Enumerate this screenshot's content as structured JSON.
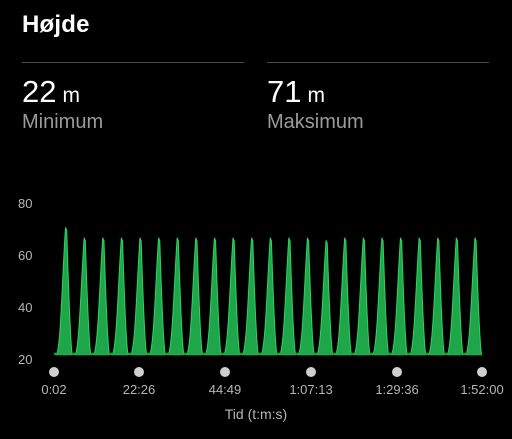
{
  "header": {
    "title": "Højde"
  },
  "stats": {
    "minimum": {
      "value": "22",
      "unit": "m",
      "label": "Minimum"
    },
    "maximum": {
      "value": "71",
      "unit": "m",
      "label": "Maksimum"
    }
  },
  "colors": {
    "fill": "#1fa64a",
    "line": "#2fd261",
    "background": "#000000",
    "marker": "#cfcfcf"
  },
  "chart_data": {
    "type": "area",
    "title": "",
    "xlabel": "Tid (t:m:s)",
    "ylabel": "",
    "ylim": [
      20,
      80
    ],
    "y_ticks": [
      "20",
      "40",
      "60",
      "80"
    ],
    "x_ticks": [
      "0:02",
      "22:26",
      "44:49",
      "1:07:13",
      "1:29:36",
      "1:52:00"
    ],
    "x_range_seconds": [
      2,
      6720
    ],
    "baseline_m": 22,
    "peaks_m": [
      71,
      67,
      67,
      67,
      67,
      67,
      67,
      67,
      67,
      67,
      67,
      67,
      67,
      67,
      66,
      67,
      67,
      67,
      67,
      67,
      67,
      67,
      67
    ]
  }
}
